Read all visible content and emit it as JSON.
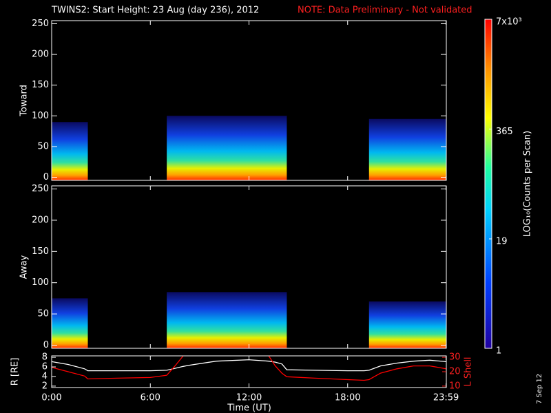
{
  "chart_data": {
    "type": "spectrogram",
    "title": "TWINS2: Start Height: 23 Aug (day 236), 2012",
    "note": "NOTE: Data Preliminary - Not validated",
    "xlabel": "Time (UT)",
    "xlim": [
      0,
      24
    ],
    "xticks": [
      {
        "value": 0,
        "label": "0:00"
      },
      {
        "value": 6,
        "label": "6:00"
      },
      {
        "value": 12,
        "label": "12:00"
      },
      {
        "value": 18,
        "label": "18:00"
      },
      {
        "value": 23.983,
        "label": "23:59"
      }
    ],
    "ylim": [
      -5,
      255
    ],
    "yticks": [
      0,
      50,
      100,
      150,
      200,
      250
    ],
    "panels": [
      {
        "ylabel": "Toward",
        "intervals": [
          {
            "start": 0,
            "end": 2.2,
            "top": 90
          },
          {
            "start": 7,
            "end": 14.3,
            "top": 100
          },
          {
            "start": 19.3,
            "end": 24,
            "top": 95
          }
        ]
      },
      {
        "ylabel": "Away",
        "intervals": [
          {
            "start": 0,
            "end": 2.2,
            "top": 75
          },
          {
            "start": 7,
            "end": 14.3,
            "top": 85
          },
          {
            "start": 19.3,
            "end": 24,
            "top": 70
          }
        ]
      }
    ],
    "colorbar": {
      "label": "LOG₁₀(Counts per Scan)",
      "log": true,
      "lim": [
        1,
        7000
      ],
      "ticks": [
        {
          "value": 7000,
          "label": "7x10³"
        },
        365,
        19,
        1
      ]
    },
    "orbit": {
      "ylabel": "R [RE]",
      "y2label": "L Shell",
      "ylim": [
        1.7,
        8.3
      ],
      "yticks": [
        2,
        4,
        6,
        8
      ],
      "y2lim": [
        9,
        31
      ],
      "y2ticks": [
        10,
        20,
        30
      ],
      "x": [
        0,
        1,
        2,
        2.2,
        4,
        6,
        7,
        7.5,
        8,
        8.3,
        10,
        12,
        13.2,
        13.6,
        14,
        14.3,
        16,
        18,
        19,
        19.3,
        20,
        21,
        22,
        23,
        24
      ],
      "series": [
        {
          "name": "R",
          "color": "#ffffff",
          "values": [
            7.1,
            6.5,
            5.6,
            5.2,
            5.2,
            5.2,
            5.3,
            5.7,
            6.1,
            6.3,
            7.2,
            7.5,
            7.2,
            7.0,
            6.6,
            5.4,
            5.3,
            5.2,
            5.2,
            5.3,
            6.2,
            6.8,
            7.2,
            7.4,
            7.1
          ]
        },
        {
          "name": "L Shell",
          "color": "#ff0000",
          "axis": "y2",
          "values": [
            23,
            20,
            17,
            15,
            15.5,
            16,
            17.5,
            24,
            31,
            null,
            null,
            null,
            31,
            24,
            19,
            16.5,
            15.5,
            14.5,
            14,
            14.5,
            19,
            22,
            24,
            24,
            22
          ]
        }
      ]
    },
    "date_stamp": "7 Sep 12"
  }
}
